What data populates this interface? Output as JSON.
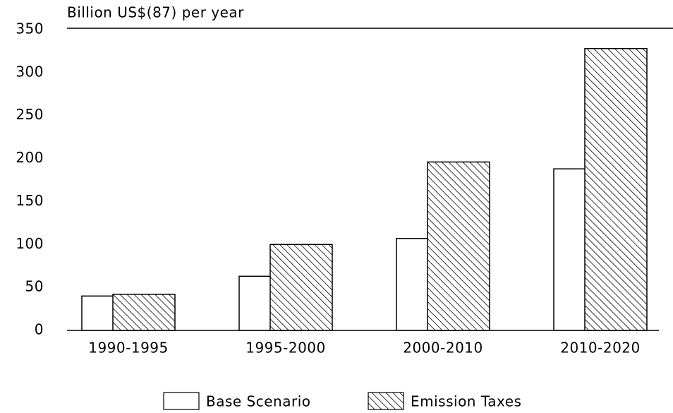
{
  "chart_data": {
    "type": "bar",
    "y_label": "Billion US$(87) per year",
    "categories": [
      "1990-1995",
      "1995-2000",
      "2000-2010",
      "2010-2020"
    ],
    "series": [
      {
        "name": "Base Scenario",
        "color": "#ffffff",
        "values": [
          40,
          63,
          107,
          188
        ]
      },
      {
        "name": "Emission Taxes",
        "color": "hatch",
        "values": [
          42,
          100,
          196,
          328
        ]
      }
    ],
    "ylim": [
      0,
      350
    ],
    "yticks": [
      0,
      50,
      100,
      150,
      200,
      250,
      300,
      350
    ],
    "grid": false
  }
}
